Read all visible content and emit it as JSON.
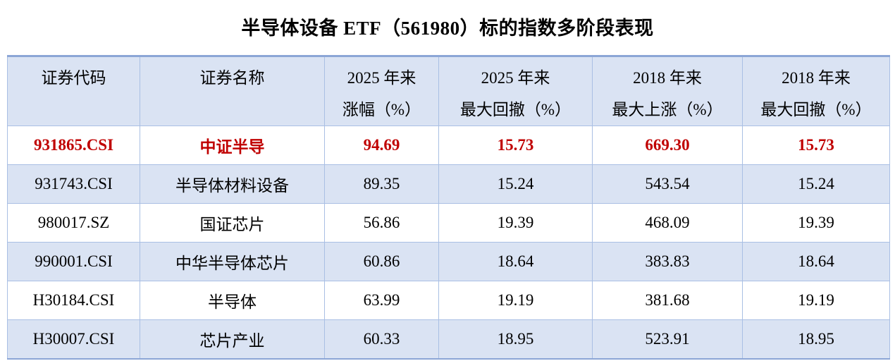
{
  "chart_data": {
    "type": "table",
    "title": "半导体设备 ETF（561980）标的指数多阶段表现",
    "headers": [
      {
        "line1": "证券代码",
        "line2": ""
      },
      {
        "line1": "证券名称",
        "line2": ""
      },
      {
        "line1": "2025 年来",
        "line2": "涨幅（%）"
      },
      {
        "line1": "2025 年来",
        "line2": "最大回撤（%）"
      },
      {
        "line1": "2018 年来",
        "line2": "最大上涨（%）"
      },
      {
        "line1": "2018 年来",
        "line2": "最大回撤（%）"
      }
    ],
    "rows": [
      {
        "code": "931865.CSI",
        "name": "中证半导",
        "gain_2025": "94.69",
        "max_drawdown_2025": "15.73",
        "max_rise_2018": "669.30",
        "max_drawdown_2018": "15.73",
        "highlighted": true
      },
      {
        "code": "931743.CSI",
        "name": "半导体材料设备",
        "gain_2025": "89.35",
        "max_drawdown_2025": "15.24",
        "max_rise_2018": "543.54",
        "max_drawdown_2018": "15.24",
        "highlighted": false
      },
      {
        "code": "980017.SZ",
        "name": "国证芯片",
        "gain_2025": "56.86",
        "max_drawdown_2025": "19.39",
        "max_rise_2018": "468.09",
        "max_drawdown_2018": "19.39",
        "highlighted": false
      },
      {
        "code": "990001.CSI",
        "name": "中华半导体芯片",
        "gain_2025": "60.86",
        "max_drawdown_2025": "18.64",
        "max_rise_2018": "383.83",
        "max_drawdown_2018": "18.64",
        "highlighted": false
      },
      {
        "code": "H30184.CSI",
        "name": "半导体",
        "gain_2025": "63.99",
        "max_drawdown_2025": "19.19",
        "max_rise_2018": "381.68",
        "max_drawdown_2018": "19.19",
        "highlighted": false
      },
      {
        "code": "H30007.CSI",
        "name": "芯片产业",
        "gain_2025": "60.33",
        "max_drawdown_2025": "18.95",
        "max_rise_2018": "523.91",
        "max_drawdown_2018": "18.95",
        "highlighted": false
      }
    ],
    "colors": {
      "highlight_text": "#c00000",
      "band_fill": "#dae3f3",
      "grid_line": "#a9bfe4",
      "outer_border": "#8ca6d6"
    },
    "layout": {
      "banding": "even rows light blue, odd rows white",
      "grid": "on",
      "header_align": "top-center",
      "cell_align": "middle-center"
    }
  }
}
